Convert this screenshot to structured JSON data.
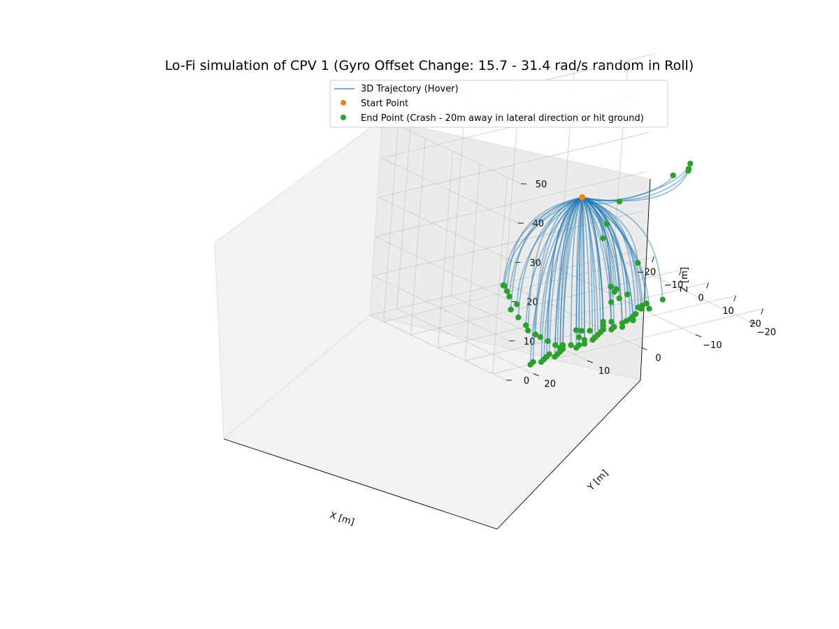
{
  "chart_data": {
    "type": "scatter",
    "title": "Lo-Fi simulation of CPV 1 (Gyro Offset Change: 15.7 - 31.4 rad/s random in Roll)",
    "xlabel": "X [m]",
    "ylabel": "Y [m]",
    "zlabel": "Z [m]",
    "xlim": [
      -25,
      25
    ],
    "ylim": [
      -25,
      25
    ],
    "zlim": [
      0,
      50
    ],
    "x_ticks": [
      "−20",
      "−10",
      "0",
      "10",
      "20"
    ],
    "y_ticks": [
      "−20",
      "−10",
      "0",
      "10",
      "20"
    ],
    "z_ticks": [
      "0",
      "10",
      "20",
      "30",
      "40",
      "50"
    ],
    "grid": true,
    "legend_position": "top-center",
    "legend": [
      {
        "label": "3D Trajectory (Hover)",
        "marker": "line",
        "color": "#1f77b4"
      },
      {
        "label": "Start Point",
        "marker": "dot",
        "color": "#ff7f0e"
      },
      {
        "label": "End Point (Crash - 20m away in lateral direction or hit ground)",
        "marker": "dot",
        "color": "#2ca02c"
      }
    ],
    "start_point": [
      0,
      0,
      30
    ],
    "series": [
      {
        "name": "End Point (Crash - 20m away in lateral direction or hit ground)",
        "points": [
          [
            -4,
            -22,
            30
          ],
          [
            -3.5,
            -21.5,
            29
          ],
          [
            -4.5,
            -22,
            28
          ],
          [
            -6,
            -20,
            27
          ],
          [
            -13,
            -14,
            20
          ],
          [
            -15,
            -13,
            14
          ],
          [
            -16,
            -13,
            10
          ],
          [
            -3,
            -13,
            8
          ],
          [
            -10,
            -12,
            0
          ],
          [
            -8,
            -12,
            0
          ],
          [
            -4,
            -12,
            0
          ],
          [
            -3,
            -10,
            0
          ],
          [
            -2,
            -8,
            0
          ],
          [
            -3,
            -9,
            2
          ],
          [
            3,
            -15,
            0
          ],
          [
            3,
            -12,
            0
          ],
          [
            3.5,
            -11,
            0
          ],
          [
            4,
            -10,
            0
          ],
          [
            6,
            -11,
            0
          ],
          [
            5,
            -10,
            0
          ],
          [
            7,
            -8,
            0
          ],
          [
            8,
            -7,
            0
          ],
          [
            9,
            -6,
            0
          ],
          [
            9.5,
            -5,
            0
          ],
          [
            10,
            -6,
            0
          ],
          [
            10,
            -4,
            0
          ],
          [
            8,
            -3,
            0
          ],
          [
            7,
            -2,
            0
          ],
          [
            9,
            -1,
            0
          ],
          [
            11,
            -2,
            0
          ],
          [
            12,
            -1,
            0
          ],
          [
            11,
            0,
            0
          ],
          [
            12,
            1,
            0
          ],
          [
            10,
            2,
            0
          ],
          [
            9,
            3,
            0
          ],
          [
            8,
            3.5,
            0
          ],
          [
            13,
            2,
            0
          ],
          [
            14,
            3,
            0
          ],
          [
            12,
            -3,
            0
          ],
          [
            12,
            5,
            0
          ],
          [
            14,
            5,
            0
          ],
          [
            15,
            4,
            0
          ],
          [
            16,
            6,
            0
          ],
          [
            16,
            7,
            0
          ],
          [
            15,
            8,
            0
          ],
          [
            17,
            8,
            0
          ],
          [
            14,
            9,
            0
          ],
          [
            15,
            10,
            0
          ],
          [
            16,
            10,
            0
          ],
          [
            17,
            11,
            0
          ],
          [
            18,
            12,
            0
          ],
          [
            19,
            13,
            0
          ],
          [
            17,
            13,
            0
          ],
          [
            18,
            14,
            0
          ],
          [
            19,
            15,
            0
          ],
          [
            20,
            16,
            0
          ],
          [
            19,
            17,
            0
          ],
          [
            20,
            18,
            0
          ],
          [
            17,
            12,
            2
          ],
          [
            18,
            14,
            4
          ],
          [
            19,
            16,
            6
          ],
          [
            21,
            18,
            8
          ],
          [
            22,
            20,
            10
          ],
          [
            23,
            21,
            12
          ],
          [
            22,
            22,
            14
          ],
          [
            21,
            23,
            16
          ],
          [
            23,
            23,
            18
          ],
          [
            22,
            24,
            20
          ],
          [
            21,
            24,
            21
          ],
          [
            20,
            24,
            22
          ],
          [
            20.5,
            24.5,
            22.5
          ]
        ]
      }
    ]
  }
}
